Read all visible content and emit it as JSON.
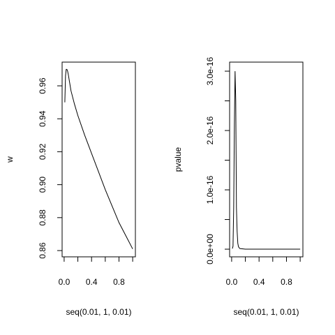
{
  "chart_data": [
    {
      "type": "line",
      "xlabel": "seq(0.01, 1, 0.01)",
      "ylabel": "w",
      "color": "#000000",
      "x": [
        0.01,
        0.02,
        0.03,
        0.04,
        0.05,
        0.06,
        0.08,
        0.1,
        0.15,
        0.2,
        0.3,
        0.4,
        0.5,
        0.6,
        0.7,
        0.8,
        0.9,
        1.0
      ],
      "values": [
        0.95,
        0.966,
        0.97,
        0.97,
        0.969,
        0.967,
        0.962,
        0.957,
        0.949,
        0.942,
        0.93,
        0.919,
        0.908,
        0.897,
        0.887,
        0.877,
        0.869,
        0.861
      ],
      "xlim": [
        -0.0296,
        1.0396
      ],
      "xticks": [
        {
          "value": 0,
          "label": "0.0"
        },
        {
          "value": 0.2,
          "label": null
        },
        {
          "value": 0.4,
          "label": "0.4"
        },
        {
          "value": 0.6,
          "label": null
        },
        {
          "value": 0.8,
          "label": "0.8"
        },
        {
          "value": 1,
          "label": null
        }
      ],
      "ylim": [
        0.8562,
        0.9744
      ],
      "yticks": [
        0.86,
        0.88,
        {
          "value": 0.9,
          "label": "0.90"
        },
        0.92,
        0.94,
        0.96
      ]
    },
    {
      "type": "line",
      "xlabel": "seq(0.01, 1, 0.01)",
      "ylabel": "pvalue",
      "color": "#000000",
      "x": [
        0.01,
        0.02,
        0.03,
        0.04,
        0.05,
        0.06,
        0.07,
        0.08,
        0.09,
        0.1,
        0.12,
        0.2,
        0.3,
        0.4,
        0.5,
        0.6,
        0.7,
        0.8,
        0.9,
        1.0
      ],
      "values": [
        1e-18,
        5e-18,
        7e-17,
        2.1e-16,
        3e-16,
        2.5e-16,
        7e-17,
        3e-17,
        1e-17,
        4e-18,
        1e-18,
        0,
        0,
        0,
        0,
        0,
        0,
        0,
        0,
        0
      ],
      "xlim": [
        -0.0296,
        1.0396
      ],
      "xticks": [
        {
          "value": 0,
          "label": "0.0"
        },
        {
          "value": 0.2,
          "label": null
        },
        {
          "value": 0.4,
          "label": "0.4"
        },
        {
          "value": 0.6,
          "label": null
        },
        {
          "value": 0.8,
          "label": "0.8"
        },
        {
          "value": 1,
          "label": null
        }
      ],
      "ylim": [
        -1.29e-17,
        3.153e-16
      ],
      "yticks": [
        {
          "value": 0,
          "label": "0.0e+00"
        },
        {
          "value": 5e-17,
          "label": null
        },
        {
          "value": 1e-16,
          "label": "1.0e-16"
        },
        {
          "value": 1.5e-16,
          "label": null
        },
        {
          "value": 2e-16,
          "label": "2.0e-16"
        },
        {
          "value": 2.5e-16,
          "label": null
        },
        {
          "value": 3e-16,
          "label": "3.0e-16"
        }
      ]
    }
  ]
}
